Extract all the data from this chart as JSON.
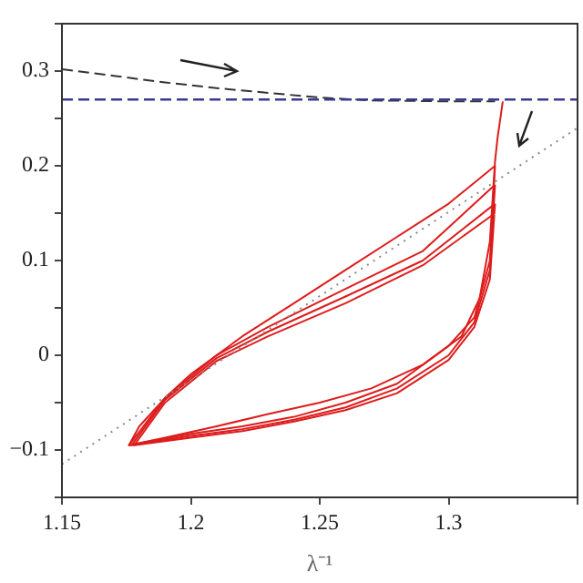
{
  "chart_data": {
    "type": "line",
    "xlabel": "λ⁻¹",
    "xlim": [
      1.15,
      1.35
    ],
    "xticks": [
      1.15,
      1.2,
      1.25,
      1.3,
      {
        "value": 1.35,
        "label": null
      }
    ],
    "ylim": [
      -0.15,
      0.35
    ],
    "yticks": [
      {
        "value": -0.15,
        "label": null
      },
      -0.1,
      {
        "value": -0.05,
        "label": null
      },
      0,
      {
        "value": 0.05,
        "label": null
      },
      0.1,
      {
        "value": 0.15,
        "label": null
      },
      0.2,
      {
        "value": 0.25,
        "label": null
      },
      0.3,
      {
        "value": 0.35,
        "label": null
      }
    ],
    "grid": false,
    "legend": false,
    "marker": "none",
    "ref_lines": [
      {
        "axis": "y",
        "value": 0.27,
        "color": "#3a3a8c",
        "line_style": "dashed"
      }
    ],
    "series": [
      {
        "color": "#333333",
        "line_style": "dashed",
        "x": [
          1.15,
          1.17,
          1.19,
          1.21,
          1.23,
          1.25,
          1.27,
          1.3,
          1.318
        ],
        "values": [
          0.302,
          0.295,
          0.288,
          0.282,
          0.277,
          0.272,
          0.269,
          0.268,
          0.268
        ]
      },
      {
        "color": "#888888",
        "line_style": "dotted",
        "x": [
          1.15,
          1.35
        ],
        "values": [
          -0.115,
          0.24
        ]
      },
      {
        "color": "#dd1c1c",
        "line_style": "solid",
        "x": [
          1.321,
          1.319,
          1.318,
          1.316,
          1.312,
          1.305,
          1.29,
          1.27,
          1.25,
          1.23,
          1.21,
          1.19,
          1.176,
          1.18,
          1.19,
          1.2,
          1.21,
          1.22,
          1.24,
          1.26,
          1.28,
          1.3,
          1.318
        ],
        "values": [
          0.268,
          0.23,
          0.205,
          0.12,
          0.06,
          0.02,
          -0.01,
          -0.035,
          -0.05,
          -0.062,
          -0.075,
          -0.087,
          -0.095,
          -0.075,
          -0.045,
          -0.02,
          0.0,
          0.02,
          0.055,
          0.09,
          0.125,
          0.16,
          0.2
        ]
      },
      {
        "color": "#dd1c1c",
        "line_style": "solid",
        "x": [
          1.318,
          1.316,
          1.31,
          1.3,
          1.28,
          1.26,
          1.24,
          1.22,
          1.2,
          1.176,
          1.19,
          1.21,
          1.23,
          1.26,
          1.29,
          1.318
        ],
        "values": [
          0.2,
          0.1,
          0.04,
          0.01,
          -0.03,
          -0.05,
          -0.065,
          -0.075,
          -0.083,
          -0.095,
          -0.045,
          0.0,
          0.03,
          0.07,
          0.11,
          0.18
        ]
      },
      {
        "color": "#dd1c1c",
        "line_style": "solid",
        "x": [
          1.318,
          1.316,
          1.31,
          1.3,
          1.28,
          1.26,
          1.24,
          1.22,
          1.2,
          1.177,
          1.19,
          1.21,
          1.23,
          1.26,
          1.29,
          1.318
        ],
        "values": [
          0.18,
          0.09,
          0.035,
          0.0,
          -0.035,
          -0.055,
          -0.068,
          -0.078,
          -0.085,
          -0.095,
          -0.047,
          -0.003,
          0.025,
          0.062,
          0.1,
          0.16
        ]
      },
      {
        "color": "#dd1c1c",
        "line_style": "solid",
        "x": [
          1.318,
          1.316,
          1.31,
          1.3,
          1.28,
          1.26,
          1.24,
          1.22,
          1.2,
          1.178,
          1.19,
          1.21,
          1.23,
          1.26,
          1.29,
          1.318
        ],
        "values": [
          0.16,
          0.08,
          0.03,
          -0.005,
          -0.04,
          -0.058,
          -0.07,
          -0.08,
          -0.087,
          -0.095,
          -0.05,
          -0.006,
          0.02,
          0.055,
          0.095,
          0.15
        ]
      }
    ]
  }
}
